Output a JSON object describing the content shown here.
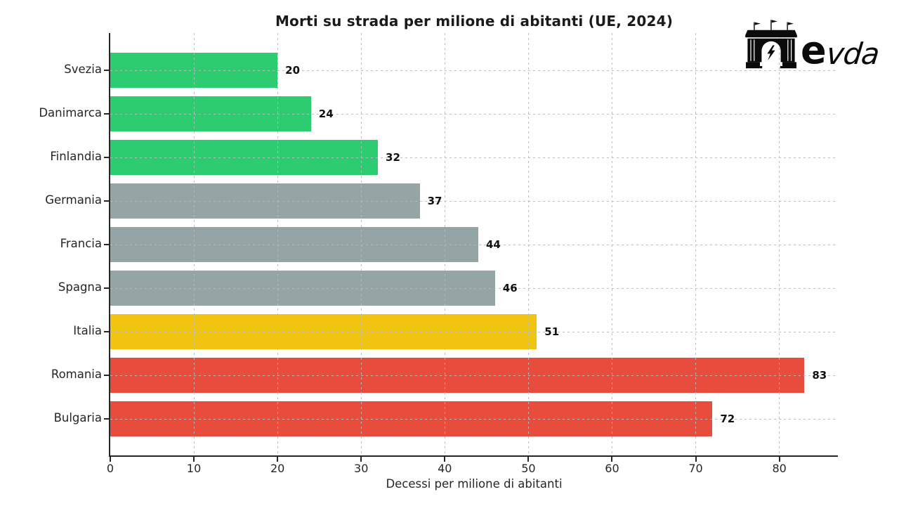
{
  "title": "Morti su strada per milione di abitanti (UE, 2024)",
  "logo": {
    "icon": "arch-monument-icon",
    "text_e": "e",
    "text_vda": "vda"
  },
  "chart_data": {
    "type": "bar",
    "orientation": "horizontal",
    "title": "Morti su strada per milione di abitanti (UE, 2024)",
    "xlabel": "Decessi per milione di abitanti",
    "ylabel": "",
    "categories": [
      "Svezia",
      "Danimarca",
      "Finlandia",
      "Germania",
      "Francia",
      "Spagna",
      "Italia",
      "Romania",
      "Bulgaria"
    ],
    "values": [
      20,
      24,
      32,
      37,
      44,
      46,
      51,
      83,
      72
    ],
    "value_labels": [
      "20",
      "24",
      "32",
      "37",
      "44",
      "46",
      "51",
      "83",
      "72"
    ],
    "bar_colors": [
      "#2ecc71",
      "#2ecc71",
      "#2ecc71",
      "#95a5a6",
      "#95a5a6",
      "#95a5a6",
      "#f1c40f",
      "#e74c3c",
      "#e74c3c"
    ],
    "xlim": [
      0,
      87
    ],
    "xticks": [
      0,
      10,
      20,
      30,
      40,
      50,
      60,
      70,
      80
    ],
    "grid": "dashed, both axes, drawn over bars",
    "legend": "none",
    "colors": {
      "green": "#2ecc71",
      "gray": "#95a5a6",
      "yellow": "#f1c40f",
      "red": "#e74c3c",
      "grid": "#b7bcbf",
      "spine": "#262626",
      "background": "#ffffff"
    }
  }
}
